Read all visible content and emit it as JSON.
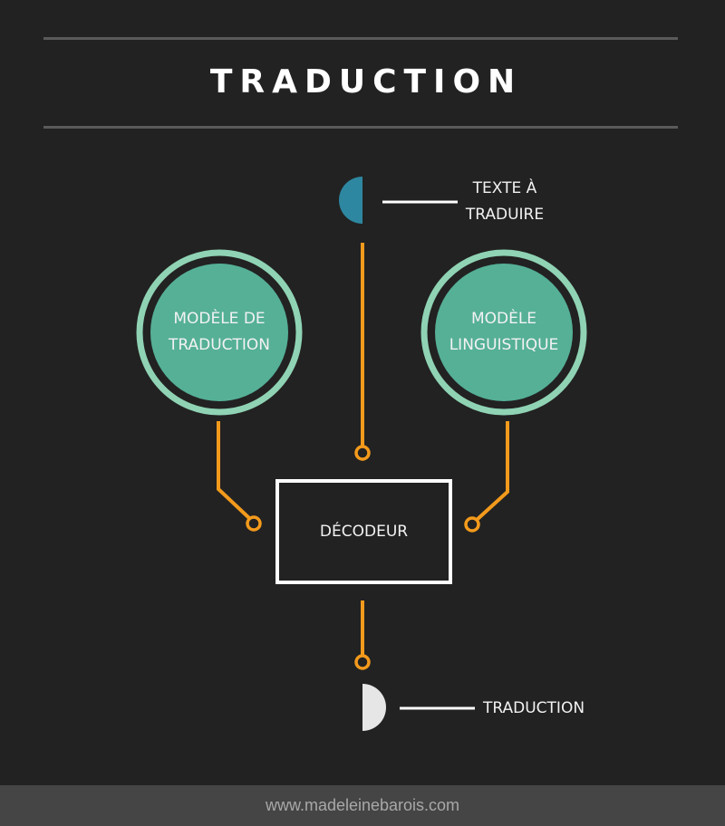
{
  "title": "TRADUCTION",
  "nodes": {
    "input": {
      "line1": "TEXTE À",
      "line2": "TRADUIRE"
    },
    "translation_model": {
      "line1": "MODÈLE DE",
      "line2": "TRADUCTION"
    },
    "language_model": {
      "line1": "MODÈLE",
      "line2": "LINGUISTIQUE"
    },
    "decoder": {
      "label": "DÉCODEUR"
    },
    "output": {
      "label": "TRADUCTION"
    }
  },
  "colors": {
    "background": "#222222",
    "connector": "#f39a1c",
    "circle_fill": "#55b096",
    "circle_ring": "#8fd3b4",
    "input_marker": "#2e87a1",
    "output_marker": "#e6e6e6",
    "footer_bg": "#454545"
  },
  "footer": {
    "url": "www.madeleinebarois.com"
  }
}
